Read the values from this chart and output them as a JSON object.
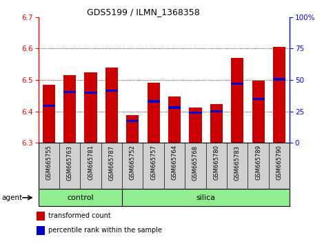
{
  "title": "GDS5199 / ILMN_1368358",
  "samples": [
    "GSM665755",
    "GSM665763",
    "GSM665781",
    "GSM665787",
    "GSM665752",
    "GSM665757",
    "GSM665764",
    "GSM665768",
    "GSM665780",
    "GSM665783",
    "GSM665789",
    "GSM665790"
  ],
  "groups": [
    "control",
    "control",
    "control",
    "control",
    "silica",
    "silica",
    "silica",
    "silica",
    "silica",
    "silica",
    "silica",
    "silica"
  ],
  "bar_tops": [
    6.484,
    6.515,
    6.525,
    6.54,
    6.388,
    6.49,
    6.448,
    6.412,
    6.423,
    6.57,
    6.498,
    6.605
  ],
  "blue_positions": [
    6.418,
    6.462,
    6.46,
    6.465,
    6.37,
    6.432,
    6.412,
    6.395,
    6.4,
    6.487,
    6.44,
    6.502
  ],
  "bar_bottom": 6.3,
  "ymin": 6.3,
  "ymax": 6.7,
  "y2min": 0,
  "y2max": 100,
  "yticks": [
    6.3,
    6.4,
    6.5,
    6.6,
    6.7
  ],
  "y2ticks": [
    0,
    25,
    50,
    75,
    100
  ],
  "y2ticklabels": [
    "0",
    "25",
    "50",
    "75",
    "100%"
  ],
  "bar_color": "#cc0000",
  "blue_color": "#0000cc",
  "bar_width": 0.6,
  "control_color": "#90ee90",
  "agent_label": "agent",
  "group_labels": [
    "control",
    "silica"
  ],
  "n_control": 4,
  "legend_items": [
    "transformed count",
    "percentile rank within the sample"
  ]
}
